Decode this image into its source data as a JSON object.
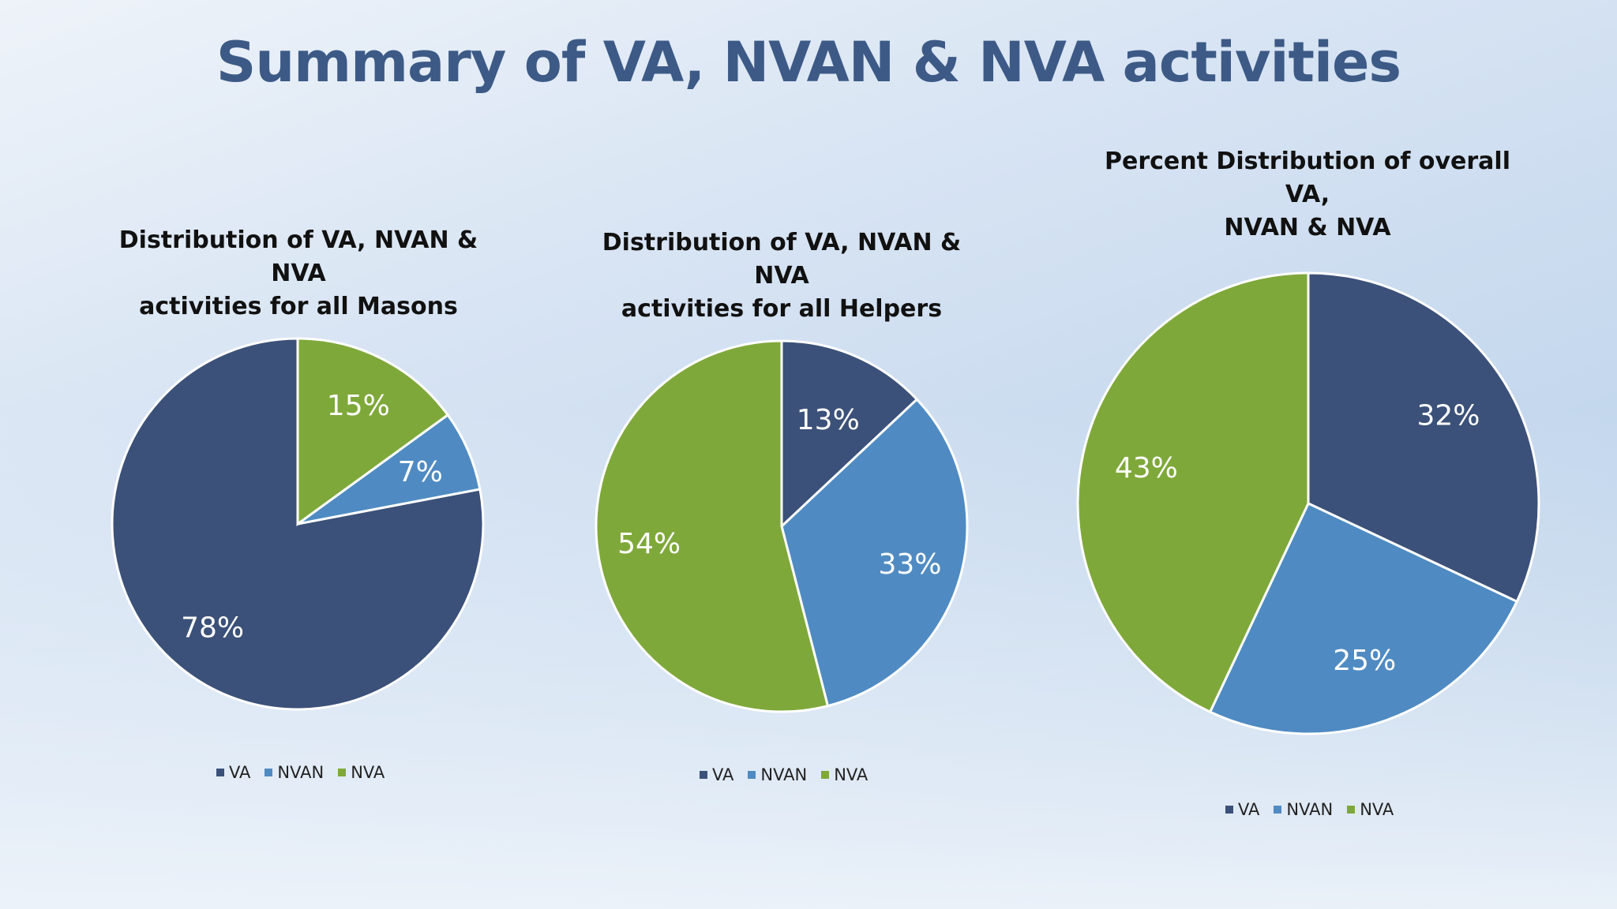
{
  "slide": {
    "title": "Summary of VA, NVAN & NVA activities"
  },
  "colors": {
    "VA": "#3b5179",
    "NVAN": "#4f8bc2",
    "NVA": "#7fa83a"
  },
  "chart_data": [
    {
      "type": "pie",
      "title": "Distribution of VA, NVAN & NVA\nactivities for all Masons",
      "categories": [
        "VA",
        "NVAN",
        "NVA"
      ],
      "values": [
        78,
        7,
        15
      ],
      "labels": [
        "78%",
        "7%",
        "15%"
      ],
      "legend": {
        "position": "bottom",
        "items": [
          "VA",
          "NVAN",
          "NVA"
        ]
      }
    },
    {
      "type": "pie",
      "title": "Distribution of VA, NVAN & NVA\nactivities for all Helpers",
      "categories": [
        "VA",
        "NVAN",
        "NVA"
      ],
      "values": [
        13,
        33,
        54
      ],
      "labels": [
        "13%",
        "33%",
        "54%"
      ],
      "legend": {
        "position": "bottom",
        "items": [
          "VA",
          "NVAN",
          "NVA"
        ]
      }
    },
    {
      "type": "pie",
      "title": "Percent Distribution of overall VA,\nNVAN & NVA",
      "categories": [
        "VA",
        "NVAN",
        "NVA"
      ],
      "values": [
        32,
        25,
        43
      ],
      "labels": [
        "32%",
        "25%",
        "43%"
      ],
      "legend": {
        "position": "bottom",
        "items": [
          "VA",
          "NVAN",
          "NVA"
        ]
      }
    }
  ]
}
